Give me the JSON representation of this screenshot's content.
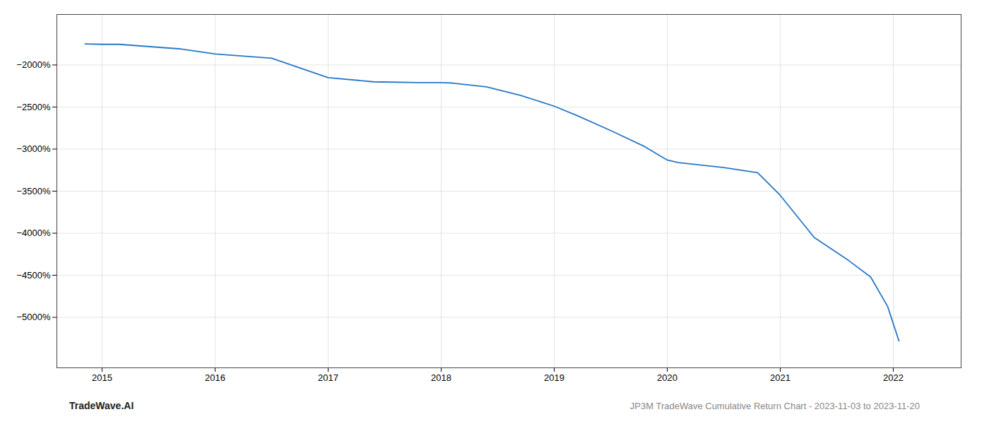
{
  "chart_data": {
    "type": "line",
    "x": [
      2014.85,
      2015.0,
      2015.15,
      2015.7,
      2016.0,
      2016.5,
      2017.0,
      2017.4,
      2017.8,
      2018.0,
      2018.1,
      2018.4,
      2018.7,
      2019.0,
      2019.2,
      2019.5,
      2019.8,
      2020.0,
      2020.1,
      2020.5,
      2020.8,
      2021.0,
      2021.3,
      2021.6,
      2021.8,
      2021.95,
      2022.05
    ],
    "values": [
      -1750,
      -1755,
      -1755,
      -1810,
      -1870,
      -1920,
      -2150,
      -2200,
      -2210,
      -2210,
      -2215,
      -2260,
      -2360,
      -2490,
      -2600,
      -2780,
      -2970,
      -3130,
      -3160,
      -3220,
      -3280,
      -3550,
      -4050,
      -4320,
      -4520,
      -4870,
      -5280
    ],
    "color": "#2878c8",
    "xlim": [
      2014.6,
      2022.6
    ],
    "xticks": [
      2015,
      2016,
      2017,
      2018,
      2019,
      2020,
      2021,
      2022
    ],
    "ylim": [
      -5600,
      -1400
    ],
    "yticks": [
      {
        "value": -2000,
        "label": "−2000%"
      },
      {
        "value": -2500,
        "label": "−2500%"
      },
      {
        "value": -3000,
        "label": "−3000%"
      },
      {
        "value": -3500,
        "label": "−3500%"
      },
      {
        "value": -4000,
        "label": "−4000%"
      },
      {
        "value": -4500,
        "label": "−4500%"
      },
      {
        "value": -5000,
        "label": "−5000%"
      }
    ],
    "grid": true,
    "annotations": [
      "TradeWave.AI",
      "JP3M TradeWave Cumulative Return Chart - 2023-11-03 to 2023-11-20"
    ]
  }
}
